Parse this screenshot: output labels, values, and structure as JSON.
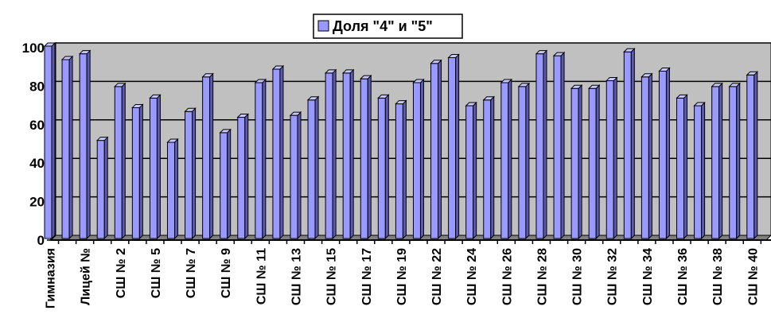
{
  "chart_data": {
    "type": "bar",
    "legend": {
      "label": "Доля \"4\" и \"5\"",
      "position": "top"
    },
    "series": [
      {
        "name": "Доля \"4\" и \"5\"",
        "color": "#9999ff",
        "values": [
          100,
          93,
          96,
          51,
          79,
          68,
          73,
          50,
          66,
          84,
          55,
          63,
          81,
          88,
          64,
          72,
          86,
          86,
          83,
          73,
          70,
          81,
          91,
          94,
          69,
          72,
          81,
          79,
          96,
          95,
          78,
          78,
          82,
          97,
          84,
          87,
          73,
          69,
          79,
          79,
          85
        ]
      }
    ],
    "categories": [
      "Гимназия",
      "",
      "Лицей №",
      "",
      "СШ № 2",
      "",
      "СШ № 5",
      "",
      "СШ № 7",
      "",
      "СШ № 9",
      "",
      "СШ № 11",
      "",
      "СШ № 13",
      "",
      "СШ № 15",
      "",
      "СШ № 17",
      "",
      "СШ № 19",
      "",
      "СШ № 22",
      "",
      "СШ № 24",
      "",
      "СШ № 26",
      "",
      "СШ № 28",
      "",
      "СШ № 30",
      "",
      "СШ № 32",
      "",
      "СШ № 34",
      "",
      "СШ № 36",
      "",
      "СШ № 38",
      "",
      "СШ № 40"
    ],
    "ylim": [
      0,
      100
    ],
    "yticks": [
      0,
      20,
      40,
      60,
      80,
      100
    ],
    "grid": true,
    "plot_background": "#c0c0c0",
    "page_background": "#ffffff"
  }
}
